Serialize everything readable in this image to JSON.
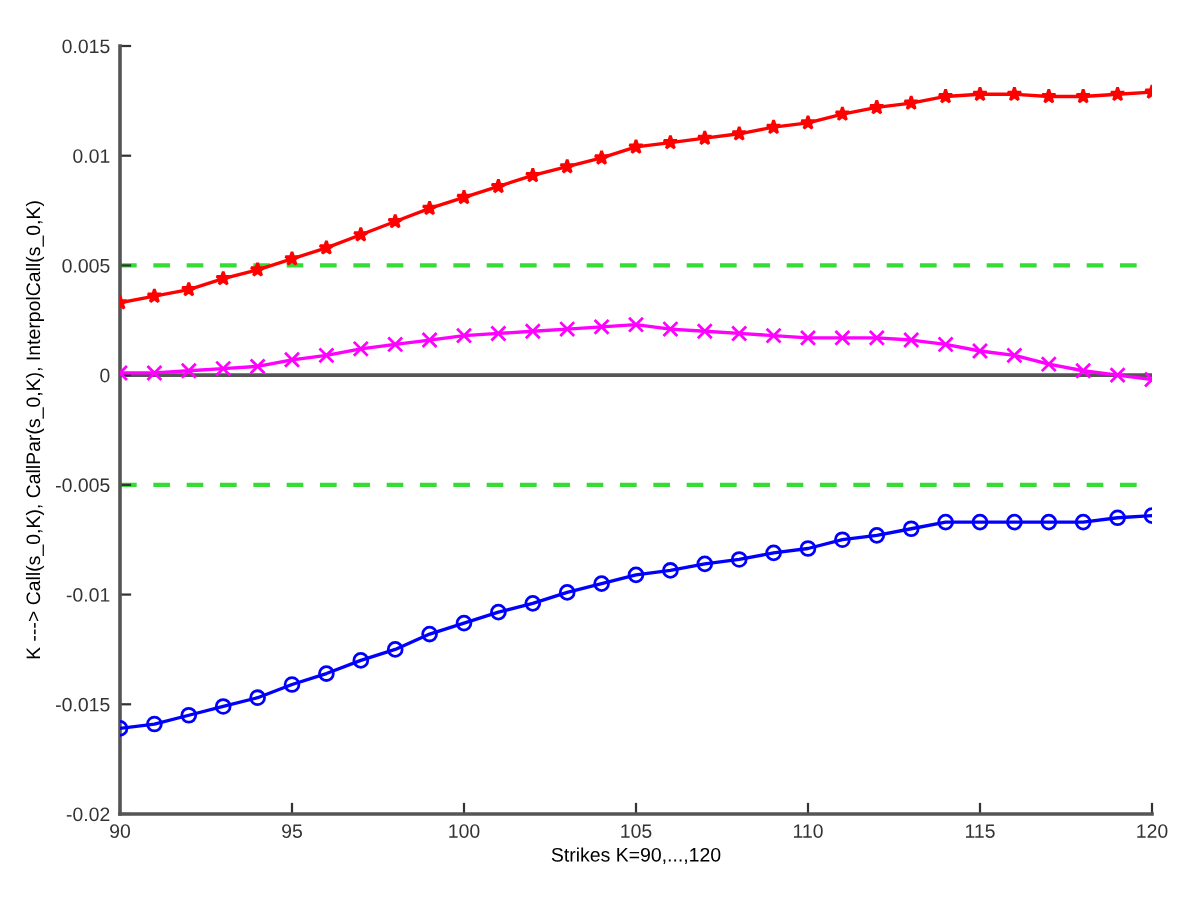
{
  "chart_data": {
    "type": "line",
    "xlabel": "Strikes K=90,...,120",
    "ylabel": "K ---> Call(s_0,K), CallPar(s_0,K), InterpolCall(s_0,K)",
    "x": [
      90,
      91,
      92,
      93,
      94,
      95,
      96,
      97,
      98,
      99,
      100,
      101,
      102,
      103,
      104,
      105,
      106,
      107,
      108,
      109,
      110,
      111,
      112,
      113,
      114,
      115,
      116,
      117,
      118,
      119,
      120
    ],
    "series": [
      {
        "color": "#ff0000",
        "marker": "star",
        "values": [
          0.0033,
          0.0036,
          0.0039,
          0.0044,
          0.0048,
          0.0053,
          0.0058,
          0.0064,
          0.007,
          0.0076,
          0.0081,
          0.0086,
          0.0091,
          0.0095,
          0.0099,
          0.0104,
          0.0106,
          0.0108,
          0.011,
          0.0113,
          0.0115,
          0.0119,
          0.0122,
          0.0124,
          0.0127,
          0.0128,
          0.0128,
          0.0127,
          0.0127,
          0.0128,
          0.0129
        ]
      },
      {
        "color": "#ff00ff",
        "marker": "cross",
        "values": [
          0.0001,
          0.0001,
          0.0002,
          0.0003,
          0.0004,
          0.0007,
          0.0009,
          0.0012,
          0.0014,
          0.0016,
          0.0018,
          0.0019,
          0.002,
          0.0021,
          0.0022,
          0.0023,
          0.0021,
          0.002,
          0.0019,
          0.0018,
          0.0017,
          0.0017,
          0.0017,
          0.0016,
          0.0014,
          0.0011,
          0.0009,
          0.0005,
          0.0002,
          0.0,
          -0.0002
        ]
      },
      {
        "color": "#0000ff",
        "marker": "circle",
        "values": [
          -0.0161,
          -0.0159,
          -0.0155,
          -0.0151,
          -0.0147,
          -0.0141,
          -0.0136,
          -0.013,
          -0.0125,
          -0.0118,
          -0.0113,
          -0.0108,
          -0.0104,
          -0.0099,
          -0.0095,
          -0.0091,
          -0.0089,
          -0.0086,
          -0.0084,
          -0.0081,
          -0.0079,
          -0.0075,
          -0.0073,
          -0.007,
          -0.0067,
          -0.0067,
          -0.0067,
          -0.0067,
          -0.0067,
          -0.0065,
          -0.0064
        ]
      }
    ],
    "ref_lines": [
      {
        "axis": "y",
        "value": 0,
        "color": "#555555",
        "line_style": "solid"
      },
      {
        "axis": "y",
        "value": 0.005,
        "color": "#33dd33",
        "line_style": "dashed"
      },
      {
        "axis": "y",
        "value": -0.005,
        "color": "#33dd33",
        "line_style": "dashed"
      }
    ],
    "xlim": [
      90,
      120
    ],
    "xticks": [
      90,
      95,
      100,
      105,
      110,
      115,
      120
    ],
    "ylim": [
      -0.02,
      0.015
    ],
    "yticks": [
      -0.02,
      -0.015,
      -0.01,
      -0.005,
      0,
      0.005,
      0.01,
      0.015
    ],
    "grid": false,
    "legend": false
  }
}
